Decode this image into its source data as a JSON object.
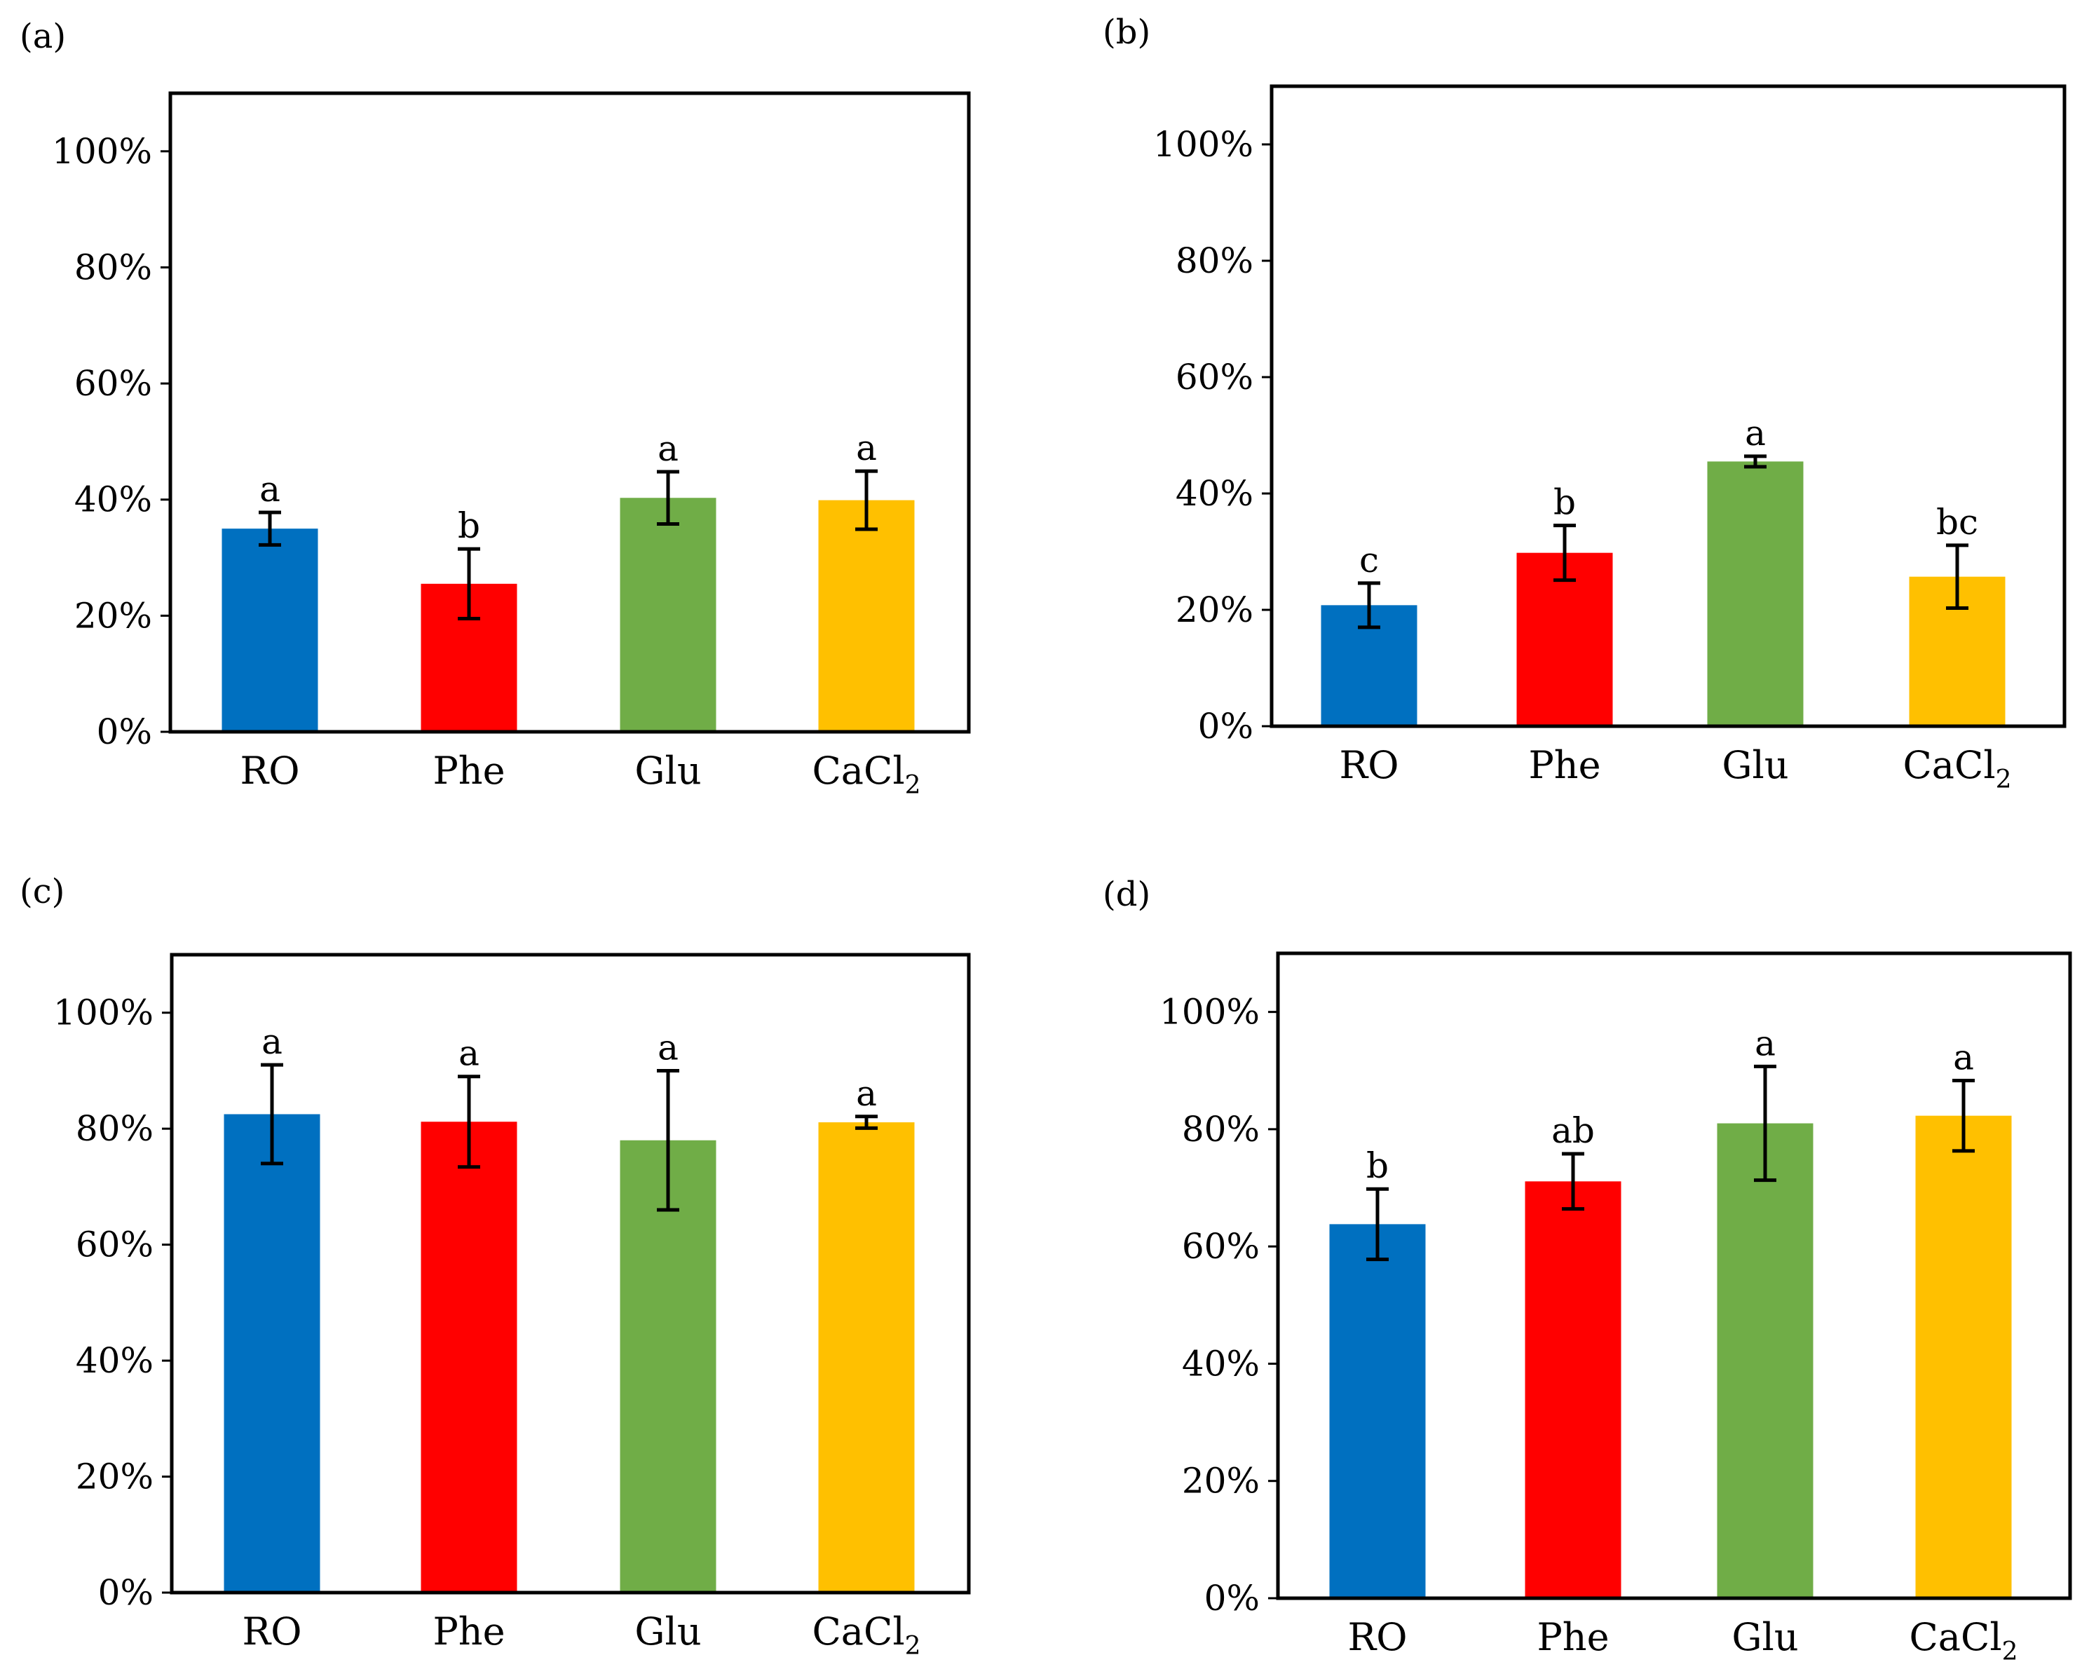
{
  "colors": {
    "RO": "#0070C0",
    "Phe": "#FF0000",
    "Glu": "#70AD47",
    "CaCl2": "#FFC000"
  },
  "chart_data": [
    {
      "type": "bar",
      "panel": "(a)",
      "categories": [
        "RO",
        "Phe",
        "Glu",
        "CaCl2"
      ],
      "category_labels": [
        {
          "main": "RO",
          "sub": ""
        },
        {
          "main": "Phe",
          "sub": ""
        },
        {
          "main": "Glu",
          "sub": ""
        },
        {
          "main": "CaCl",
          "sub": "2"
        }
      ],
      "values": [
        35,
        25.5,
        40.3,
        39.9
      ],
      "error": [
        2.8,
        6.0,
        4.5,
        5.0
      ],
      "significance": [
        "a",
        "b",
        "a",
        "a"
      ],
      "ylim": [
        0,
        110
      ],
      "yticks": [
        0,
        20,
        40,
        60,
        80,
        100
      ],
      "ytick_labels": [
        "0%",
        "20%",
        "40%",
        "60%",
        "80%",
        "100%"
      ],
      "xlabel": "",
      "ylabel": ""
    },
    {
      "type": "bar",
      "panel": "(b)",
      "categories": [
        "RO",
        "Phe",
        "Glu",
        "CaCl2"
      ],
      "category_labels": [
        {
          "main": "RO",
          "sub": ""
        },
        {
          "main": "Phe",
          "sub": ""
        },
        {
          "main": "Glu",
          "sub": ""
        },
        {
          "main": "CaCl",
          "sub": "2"
        }
      ],
      "values": [
        20.8,
        29.8,
        45.5,
        25.7
      ],
      "error": [
        3.8,
        4.7,
        0.9,
        5.4
      ],
      "significance": [
        "c",
        "b",
        "a",
        "bc"
      ],
      "ylim": [
        0,
        110
      ],
      "yticks": [
        0,
        20,
        40,
        60,
        80,
        100
      ],
      "ytick_labels": [
        "0%",
        "20%",
        "40%",
        "60%",
        "80%",
        "100%"
      ],
      "xlabel": "",
      "ylabel": ""
    },
    {
      "type": "bar",
      "panel": "(c)",
      "categories": [
        "RO",
        "Phe",
        "Glu",
        "CaCl2"
      ],
      "category_labels": [
        {
          "main": "RO",
          "sub": ""
        },
        {
          "main": "Phe",
          "sub": ""
        },
        {
          "main": "Glu",
          "sub": ""
        },
        {
          "main": "CaCl",
          "sub": "2"
        }
      ],
      "values": [
        82.5,
        81.2,
        78,
        81.1
      ],
      "error": [
        8.5,
        7.8,
        12.0,
        1.0
      ],
      "significance": [
        "a",
        "a",
        "a",
        "a"
      ],
      "ylim": [
        0,
        110
      ],
      "yticks": [
        0,
        20,
        40,
        60,
        80,
        100
      ],
      "ytick_labels": [
        "0%",
        "20%",
        "40%",
        "60%",
        "80%",
        "100%"
      ],
      "xlabel": "",
      "ylabel": ""
    },
    {
      "type": "bar",
      "panel": "(d)",
      "categories": [
        "RO",
        "Phe",
        "Glu",
        "CaCl2"
      ],
      "category_labels": [
        {
          "main": "RO",
          "sub": ""
        },
        {
          "main": "Phe",
          "sub": ""
        },
        {
          "main": "Glu",
          "sub": ""
        },
        {
          "main": "CaCl",
          "sub": "2"
        }
      ],
      "values": [
        63.8,
        71.1,
        81,
        82.3
      ],
      "error": [
        6.0,
        4.7,
        9.7,
        6.0
      ],
      "significance": [
        "b",
        "ab",
        "a",
        "a"
      ],
      "ylim": [
        0,
        110
      ],
      "yticks": [
        0,
        20,
        40,
        60,
        80,
        100
      ],
      "ytick_labels": [
        "0%",
        "20%",
        "40%",
        "60%",
        "80%",
        "100%"
      ],
      "xlabel": "",
      "ylabel": ""
    }
  ]
}
